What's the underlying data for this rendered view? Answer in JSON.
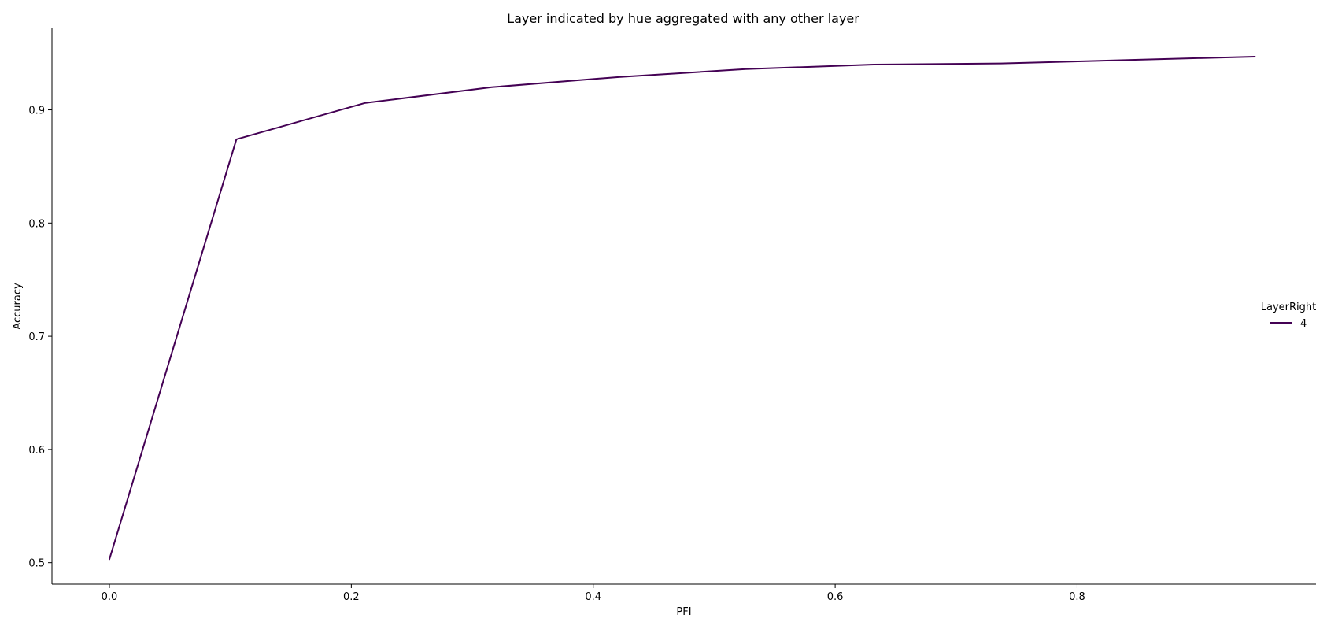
{
  "chart_data": {
    "type": "line",
    "title": "Layer indicated by hue aggregated with any other layer",
    "xlabel": "PFI",
    "ylabel": "Accuracy",
    "xlim": [
      -0.0475,
      0.9975
    ],
    "ylim": [
      0.481,
      0.972
    ],
    "x_ticks": [
      0.0,
      0.2,
      0.4,
      0.6,
      0.8
    ],
    "x_tick_labels": [
      "0.0",
      "0.2",
      "0.4",
      "0.6",
      "0.8"
    ],
    "y_ticks": [
      0.5,
      0.6,
      0.7,
      0.8,
      0.9
    ],
    "y_tick_labels": [
      "0.5",
      "0.6",
      "0.7",
      "0.8",
      "0.9"
    ],
    "grid": false,
    "legend": {
      "title": "LayerRight",
      "position": "right"
    },
    "series": [
      {
        "name": "4",
        "color": "#440154",
        "x": [
          0.0,
          0.105,
          0.211,
          0.316,
          0.421,
          0.526,
          0.632,
          0.737,
          0.842,
          0.947
        ],
        "y": [
          0.503,
          0.874,
          0.906,
          0.92,
          0.929,
          0.936,
          0.94,
          0.941,
          0.944,
          0.947
        ]
      }
    ]
  }
}
